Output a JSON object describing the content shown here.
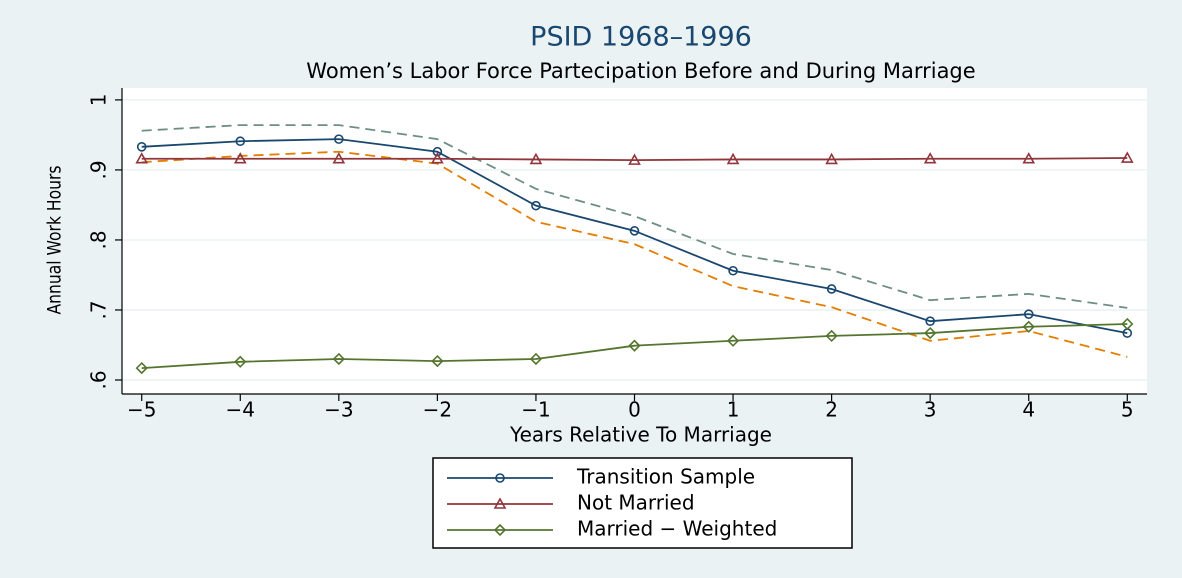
{
  "chart_data": {
    "type": "line",
    "title": "PSID 1968–1996",
    "subtitle": "Women’s Labor Force Partecipation Before and During Marriage",
    "x_label": "Years Relative To Marriage",
    "y_label": "Annual Work Hours",
    "x": [
      -5,
      -4,
      -3,
      -2,
      -1,
      0,
      1,
      2,
      3,
      4,
      5
    ],
    "xlim": [
      -5.2,
      5.2
    ],
    "xticks": [
      {
        "value": -5,
        "label": "−5"
      },
      {
        "value": -4,
        "label": "−4"
      },
      {
        "value": -3,
        "label": "−3"
      },
      {
        "value": -2,
        "label": "−2"
      },
      {
        "value": -1,
        "label": "−1"
      },
      0,
      1,
      2,
      3,
      4,
      5
    ],
    "ylim": [
      0.58,
      1.017
    ],
    "yticks": [
      {
        "value": 0.6,
        "label": ".6"
      },
      {
        "value": 0.7,
        "label": ".7"
      },
      {
        "value": 0.8,
        "label": ".8"
      },
      {
        "value": 0.9,
        "label": ".9"
      },
      1
    ],
    "grid": true,
    "series": [
      {
        "name": "Transition Sample",
        "color": "#1a476f",
        "marker": "circle",
        "values": [
          0.933,
          0.941,
          0.944,
          0.926,
          0.849,
          0.813,
          0.756,
          0.73,
          0.684,
          0.694,
          0.667
        ]
      },
      {
        "name": "Not Married",
        "color": "#90353b",
        "marker": "triangle",
        "values": [
          0.916,
          0.916,
          0.916,
          0.916,
          0.915,
          0.914,
          0.915,
          0.915,
          0.916,
          0.916,
          0.917
        ]
      },
      {
        "name": "Married − Weighted",
        "color": "#55752f",
        "marker": "diamond",
        "values": [
          0.617,
          0.626,
          0.63,
          0.627,
          0.63,
          0.649,
          0.656,
          0.663,
          0.667,
          0.676,
          0.68
        ]
      },
      {
        "color": "#6e8e84",
        "dashed": true,
        "values": [
          0.956,
          0.964,
          0.964,
          0.944,
          0.873,
          0.834,
          0.78,
          0.757,
          0.714,
          0.723,
          0.703
        ]
      },
      {
        "color": "#e37e00",
        "dashed": true,
        "values": [
          0.911,
          0.92,
          0.926,
          0.909,
          0.826,
          0.794,
          0.734,
          0.704,
          0.656,
          0.67,
          0.633
        ]
      }
    ]
  }
}
